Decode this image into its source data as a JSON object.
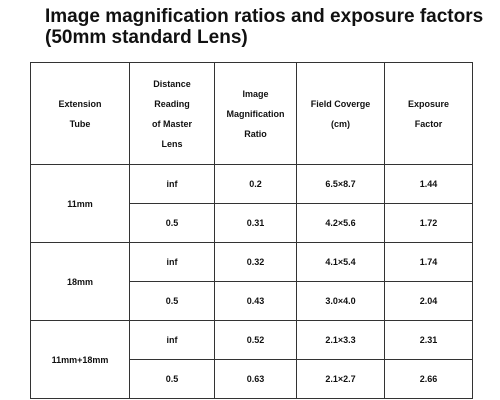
{
  "header": {
    "title": [
      "Image magnification ratios and exposure factors",
      "(50mm standard Lens)"
    ]
  },
  "table": {
    "columns": [
      [
        "Extension",
        "Tube"
      ],
      [
        "Distance",
        "Reading",
        "of Master",
        "Lens"
      ],
      [
        "Image",
        "Magnification",
        "Ratio"
      ],
      [
        "Field Coverge",
        "(cm)"
      ],
      [
        "Exposure",
        "Factor"
      ]
    ],
    "groups": [
      {
        "tube": "11mm",
        "rows": [
          [
            "inf",
            "0.2",
            "6.5×8.7",
            "1.44"
          ],
          [
            "0.5",
            "0.31",
            "4.2×5.6",
            "1.72"
          ]
        ]
      },
      {
        "tube": "18mm",
        "rows": [
          [
            "inf",
            "0.32",
            "4.1×5.4",
            "1.74"
          ],
          [
            "0.5",
            "0.43",
            "3.0×4.0",
            "2.04"
          ]
        ]
      },
      {
        "tube": "11mm+18mm",
        "rows": [
          [
            "inf",
            "0.52",
            "2.1×3.3",
            "2.31"
          ],
          [
            "0.5",
            "0.63",
            "2.1×2.7",
            "2.66"
          ]
        ]
      }
    ]
  }
}
